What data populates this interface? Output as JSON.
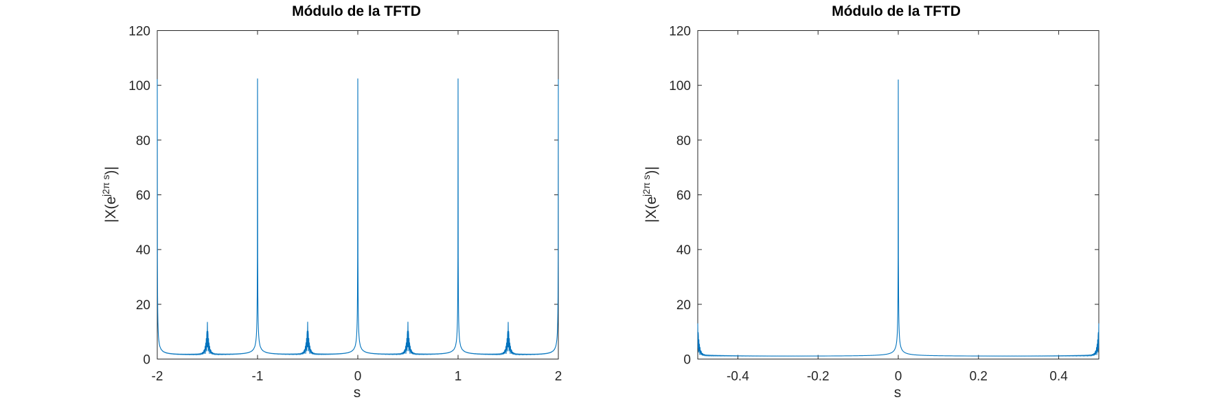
{
  "chart_data": [
    {
      "type": "line",
      "title": "Módulo de la TFTD",
      "xlabel": "s",
      "ylabel_main": "|X(e",
      "ylabel_sup": "j2π s",
      "ylabel_end": ")|",
      "xlim": [
        -2,
        2
      ],
      "ylim": [
        0,
        120
      ],
      "xticks": [
        -2,
        -1,
        0,
        1,
        2
      ],
      "xtick_labels": [
        "-2",
        "-1",
        "0",
        "1",
        "2"
      ],
      "yticks": [
        0,
        20,
        40,
        60,
        80,
        100,
        120
      ],
      "ytick_labels": [
        "0",
        "20",
        "40",
        "60",
        "80",
        "100",
        "120"
      ],
      "grid": false,
      "color": "#0072BD",
      "main_peaks": {
        "positions": [
          -2,
          -1,
          0,
          1,
          2
        ],
        "height": 101
      },
      "secondary_peaks": {
        "positions": [
          -1.5,
          -0.5,
          0.5,
          1.5
        ],
        "height": 12
      },
      "baseline": 1
    },
    {
      "type": "line",
      "title": "Módulo de la TFTD",
      "xlabel": "s",
      "ylabel_main": "|X(e",
      "ylabel_sup": "j2π s",
      "ylabel_end": ")|",
      "xlim": [
        -0.5,
        0.5
      ],
      "ylim": [
        0,
        120
      ],
      "xticks": [
        -0.4,
        -0.2,
        0,
        0.2,
        0.4
      ],
      "xtick_labels": [
        "-0.4",
        "-0.2",
        "0",
        "0.2",
        "0.4"
      ],
      "yticks": [
        0,
        20,
        40,
        60,
        80,
        100,
        120
      ],
      "ytick_labels": [
        "0",
        "20",
        "40",
        "60",
        "80",
        "100",
        "120"
      ],
      "grid": false,
      "color": "#0072BD",
      "main_peaks": {
        "positions": [
          0
        ],
        "height": 101
      },
      "secondary_peaks": {
        "positions": [
          -0.5,
          0.5
        ],
        "height": 12
      },
      "baseline": 1
    }
  ]
}
